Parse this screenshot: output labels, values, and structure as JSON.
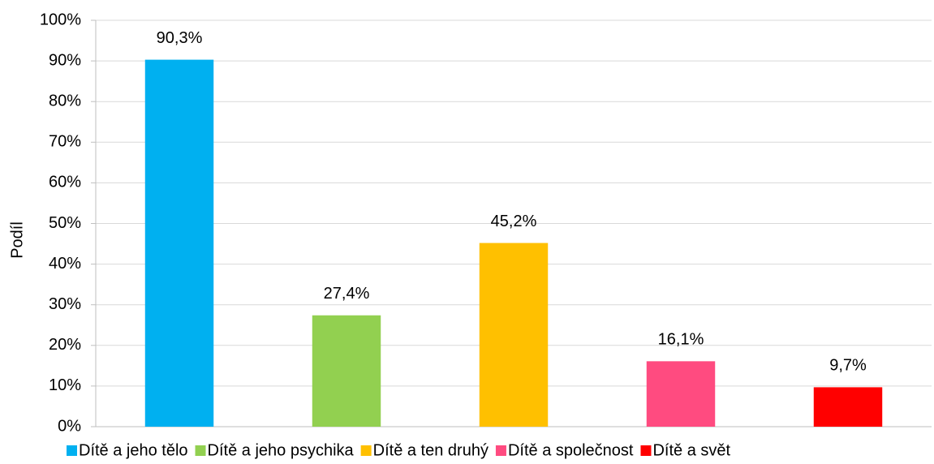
{
  "chart_data": {
    "type": "bar",
    "ylabel": "Podíl",
    "categories": [
      "Dítě a jeho tělo",
      "Dítě a jeho psychika",
      "Dítě a ten druhý",
      "Dítě a společnost",
      "Dítě a svět"
    ],
    "values": [
      90.3,
      27.4,
      45.2,
      16.1,
      9.7
    ],
    "value_labels": [
      "90,3%",
      "27,4%",
      "45,2%",
      "16,1%",
      "9,7%"
    ],
    "colors": [
      "#00b0f0",
      "#92d050",
      "#ffc000",
      "#ff4b80",
      "#ff0000"
    ],
    "ylim": [
      0,
      100
    ],
    "yticks": [
      {
        "value": 0,
        "label": "0%"
      },
      {
        "value": 10,
        "label": "10%"
      },
      {
        "value": 20,
        "label": "20%"
      },
      {
        "value": 30,
        "label": "30%"
      },
      {
        "value": 40,
        "label": "40%"
      },
      {
        "value": 50,
        "label": "50%"
      },
      {
        "value": 60,
        "label": "60%"
      },
      {
        "value": 70,
        "label": "70%"
      },
      {
        "value": 80,
        "label": "80%"
      },
      {
        "value": 90,
        "label": "90%"
      },
      {
        "value": 100,
        "label": "100%"
      }
    ],
    "grid": true,
    "legend": "bottom"
  }
}
